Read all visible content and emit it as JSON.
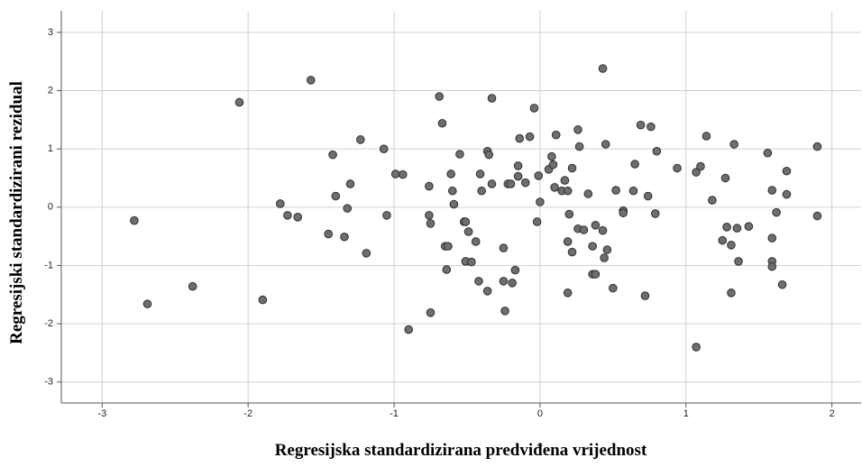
{
  "chart_data": {
    "type": "scatter",
    "xlabel": "Regresijska standardizirana predviđena vrijednost",
    "ylabel": "Regresijski standardizirani rezidual",
    "xlim": [
      -3.28,
      2.2
    ],
    "ylim": [
      -3.36,
      3.37
    ],
    "xticks": [
      -3,
      -2,
      -1,
      0,
      1,
      2
    ],
    "yticks": [
      -3,
      -2,
      -1,
      0,
      1,
      2,
      3
    ],
    "grid": true,
    "color": "#6e6e6e",
    "x": [
      -2.78,
      -2.69,
      -2.38,
      -2.06,
      -1.9,
      -1.78,
      -1.73,
      -1.66,
      -1.57,
      -1.45,
      -1.42,
      -1.4,
      -1.34,
      -1.32,
      -1.3,
      -1.23,
      -1.19,
      -1.07,
      -1.05,
      -0.99,
      -0.94,
      -0.9,
      -0.76,
      -0.76,
      -0.75,
      -0.75,
      -0.69,
      -0.67,
      -0.65,
      -0.64,
      -0.63,
      -0.61,
      -0.6,
      -0.59,
      -0.55,
      -0.52,
      -0.51,
      -0.49,
      -0.51,
      -0.47,
      -0.44,
      -0.42,
      -0.41,
      -0.4,
      -0.36,
      -0.36,
      -0.35,
      -0.33,
      -0.33,
      -0.25,
      -0.25,
      -0.24,
      -0.22,
      -0.2,
      -0.19,
      -0.17,
      -0.15,
      -0.15,
      -0.14,
      -0.1,
      -0.07,
      -0.04,
      -0.02,
      -0.01,
      0.0,
      0.06,
      0.08,
      0.09,
      0.1,
      0.11,
      0.15,
      0.17,
      0.19,
      0.19,
      0.19,
      0.2,
      0.22,
      0.22,
      0.26,
      0.26,
      0.27,
      0.3,
      0.33,
      0.36,
      0.38,
      0.36,
      0.38,
      0.43,
      0.43,
      0.44,
      0.45,
      0.46,
      0.5,
      0.52,
      0.57,
      0.57,
      0.64,
      0.65,
      0.69,
      0.72,
      0.74,
      0.76,
      0.79,
      0.8,
      0.94,
      1.07,
      1.1,
      1.14,
      1.18,
      1.25,
      1.27,
      1.28,
      1.31,
      1.31,
      1.33,
      1.35,
      1.36,
      1.43,
      1.56,
      1.59,
      1.59,
      1.59,
      1.59,
      1.62,
      1.66,
      1.69,
      1.69,
      1.9,
      1.9,
      1.07
    ],
    "y": [
      -0.23,
      -1.66,
      -1.36,
      1.8,
      -1.59,
      0.06,
      -0.14,
      -0.17,
      2.18,
      -0.46,
      0.9,
      0.19,
      -0.51,
      -0.02,
      0.4,
      1.16,
      -0.79,
      1.0,
      -0.14,
      0.57,
      0.56,
      -2.1,
      0.36,
      -0.14,
      -0.28,
      -1.81,
      1.9,
      1.44,
      -0.67,
      -1.07,
      -0.67,
      0.57,
      0.28,
      0.05,
      0.91,
      -0.25,
      -0.25,
      -0.42,
      -0.93,
      -0.94,
      -0.59,
      -1.27,
      0.57,
      0.28,
      0.96,
      -1.44,
      0.9,
      1.87,
      0.4,
      -0.7,
      -1.27,
      -1.78,
      0.4,
      0.4,
      -1.3,
      -1.08,
      0.71,
      0.53,
      1.18,
      0.42,
      1.21,
      1.7,
      -0.25,
      0.54,
      0.09,
      0.65,
      0.87,
      0.73,
      0.34,
      1.24,
      0.28,
      0.46,
      0.28,
      -0.59,
      -1.47,
      -0.12,
      0.67,
      -0.77,
      1.33,
      -0.37,
      1.04,
      -0.39,
      0.23,
      -1.15,
      -1.15,
      -0.67,
      -0.31,
      2.38,
      -0.4,
      -0.87,
      1.08,
      -0.73,
      -1.39,
      0.29,
      -0.06,
      -0.1,
      0.28,
      0.74,
      1.41,
      -1.52,
      0.19,
      1.38,
      -0.11,
      0.96,
      0.67,
      0.6,
      0.7,
      1.22,
      0.12,
      -0.57,
      0.5,
      -0.34,
      -0.65,
      -1.47,
      1.08,
      -0.36,
      -0.93,
      -0.33,
      0.93,
      0.29,
      -0.53,
      -0.93,
      -1.02,
      -0.09,
      -1.33,
      0.62,
      0.22,
      1.04,
      -0.15,
      -2.4
    ]
  }
}
